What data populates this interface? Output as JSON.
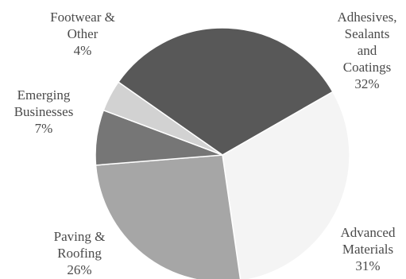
{
  "chart_data": {
    "type": "pie",
    "title": "",
    "slices": [
      {
        "label_lines": [
          "Adhesives,",
          "Sealants",
          "and",
          "Coatings"
        ],
        "value": 32,
        "value_text": "32%",
        "color": "#585858"
      },
      {
        "label_lines": [
          "Advanced",
          "Materials"
        ],
        "value": 31,
        "value_text": "31%",
        "color": "#f4f4f4"
      },
      {
        "label_lines": [
          "Paving &",
          "Roofing"
        ],
        "value": 26,
        "value_text": "26%",
        "color": "#a6a6a6"
      },
      {
        "label_lines": [
          "Emerging",
          "Businesses"
        ],
        "value": 7,
        "value_text": "7%",
        "color": "#767676"
      },
      {
        "label_lines": [
          "Footwear &",
          "Other"
        ],
        "value": 4,
        "value_text": "4%",
        "color": "#d2d2d2"
      }
    ]
  }
}
